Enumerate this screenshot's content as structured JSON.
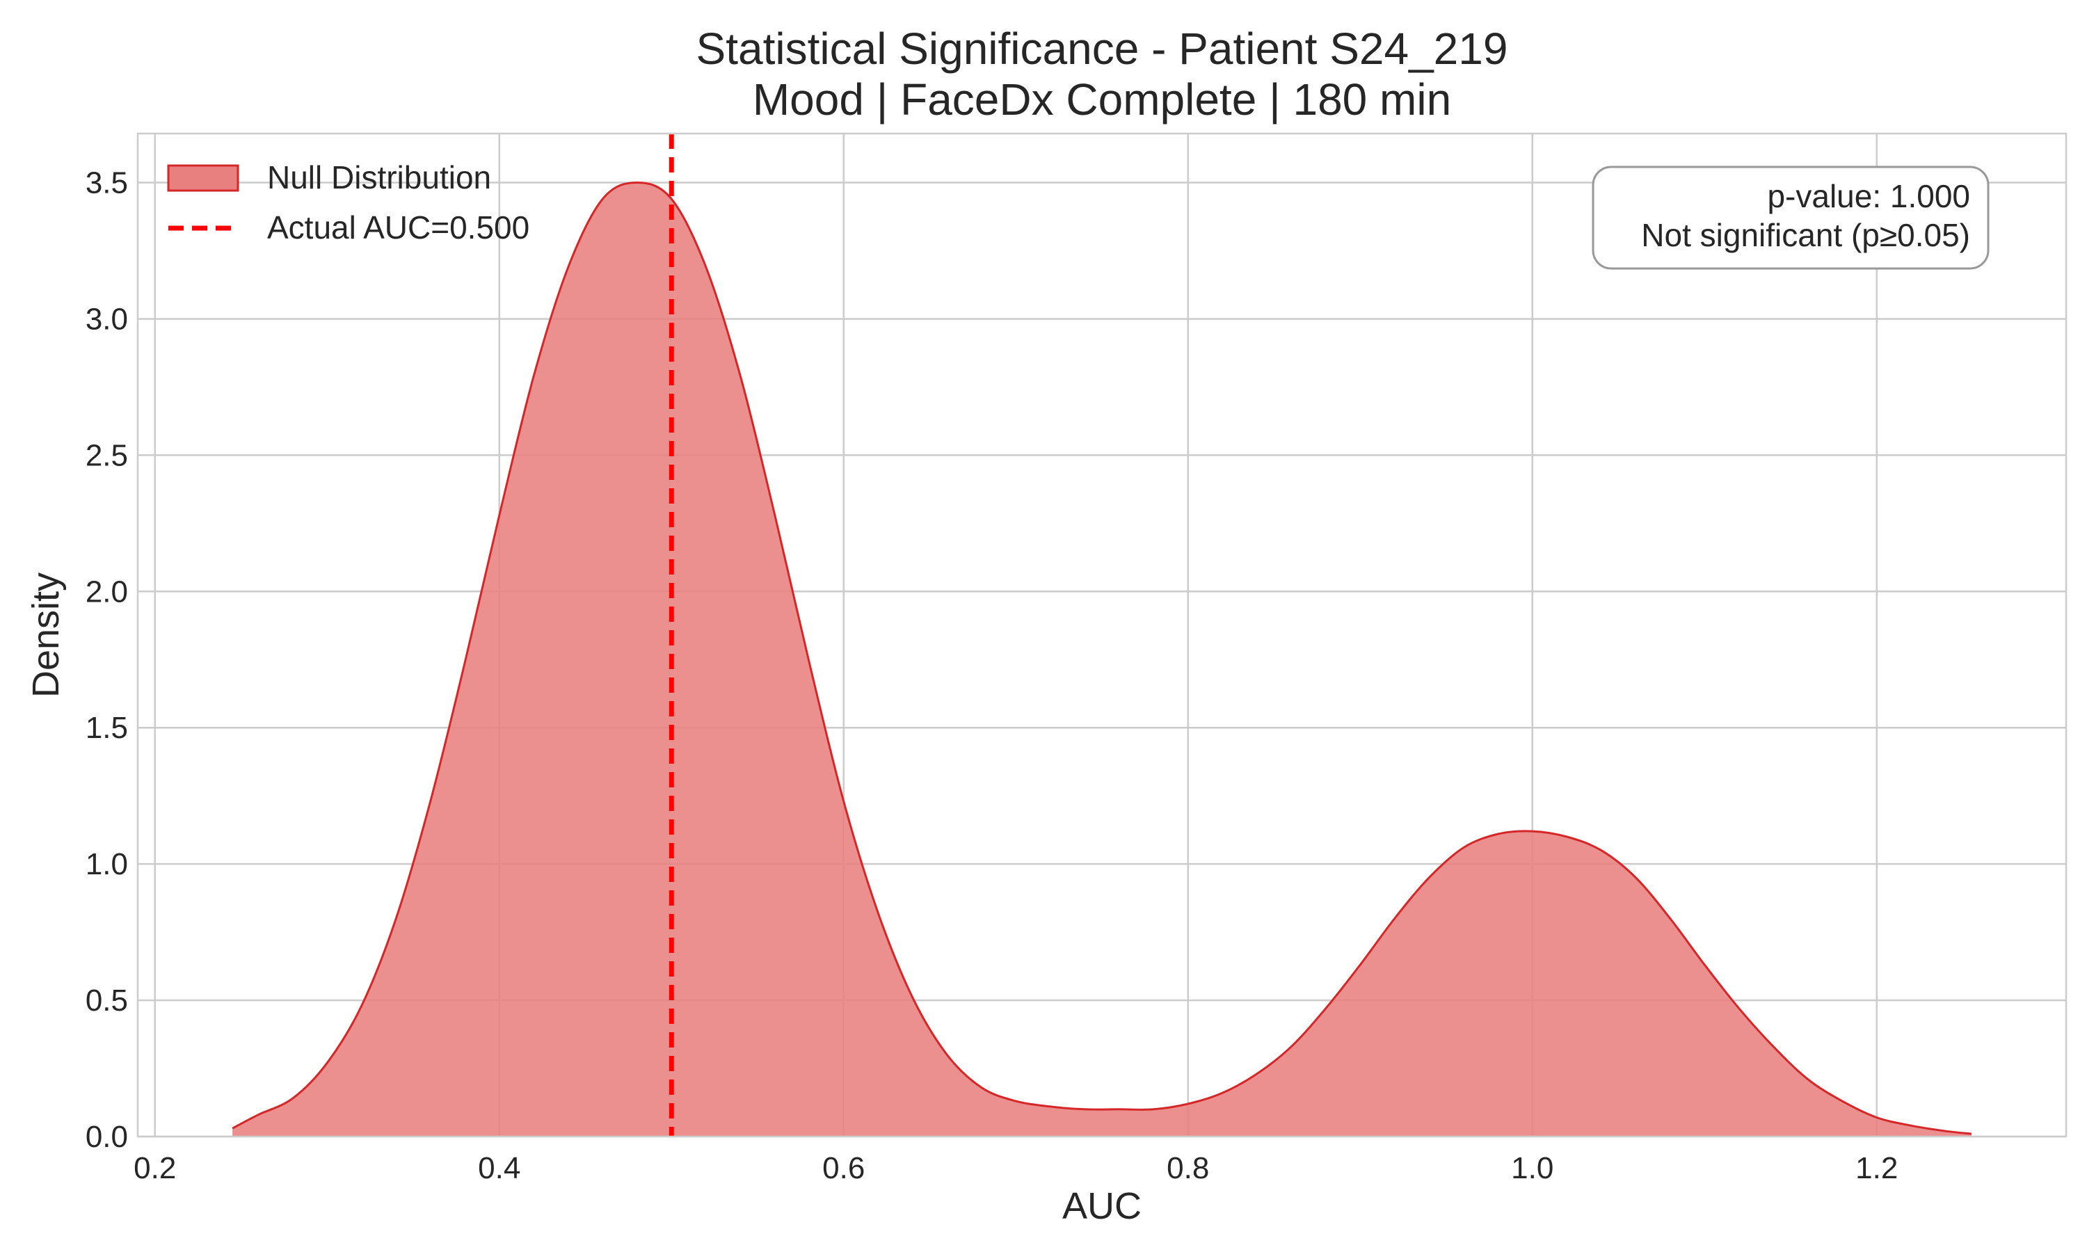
{
  "chart_data": {
    "type": "area",
    "title": "Statistical Significance - Patient S24_219",
    "subtitle": "Mood | FaceDx Complete | 180 min",
    "xlabel": "AUC",
    "ylabel": "Density",
    "xlim": [
      0.19,
      1.31
    ],
    "ylim": [
      0.0,
      3.68
    ],
    "xticks": [
      0.2,
      0.4,
      0.6,
      0.8,
      1.0,
      1.2
    ],
    "yticks": [
      0.0,
      0.5,
      1.0,
      1.5,
      2.0,
      2.5,
      3.0,
      3.5
    ],
    "grid": true,
    "legend_position": "top-left",
    "series": [
      {
        "name": "Null Distribution",
        "kind": "kde-area",
        "color": "#d62728",
        "fill_color": "#e88080",
        "x": [
          0.245,
          0.26,
          0.28,
          0.3,
          0.32,
          0.34,
          0.36,
          0.38,
          0.4,
          0.42,
          0.44,
          0.46,
          0.48,
          0.5,
          0.52,
          0.54,
          0.56,
          0.58,
          0.6,
          0.62,
          0.64,
          0.66,
          0.68,
          0.7,
          0.72,
          0.74,
          0.76,
          0.78,
          0.8,
          0.82,
          0.84,
          0.86,
          0.88,
          0.9,
          0.92,
          0.94,
          0.96,
          0.98,
          1.0,
          1.02,
          1.04,
          1.06,
          1.08,
          1.1,
          1.12,
          1.14,
          1.16,
          1.18,
          1.2,
          1.22,
          1.24,
          1.255
        ],
        "y": [
          0.03,
          0.08,
          0.14,
          0.27,
          0.48,
          0.8,
          1.23,
          1.74,
          2.28,
          2.79,
          3.19,
          3.44,
          3.5,
          3.44,
          3.19,
          2.79,
          2.28,
          1.74,
          1.23,
          0.82,
          0.51,
          0.3,
          0.18,
          0.13,
          0.11,
          0.1,
          0.1,
          0.1,
          0.12,
          0.16,
          0.23,
          0.33,
          0.47,
          0.63,
          0.8,
          0.95,
          1.06,
          1.11,
          1.12,
          1.1,
          1.05,
          0.95,
          0.8,
          0.63,
          0.47,
          0.33,
          0.21,
          0.13,
          0.07,
          0.04,
          0.02,
          0.01
        ]
      },
      {
        "name": "Actual AUC=0.500",
        "kind": "vertical-line",
        "x": 0.5,
        "color": "#ff0000"
      }
    ],
    "annotation": {
      "line1": "p-value: 1.000",
      "line2": "Not significant (p≥0.05)",
      "position": "top-right"
    }
  }
}
